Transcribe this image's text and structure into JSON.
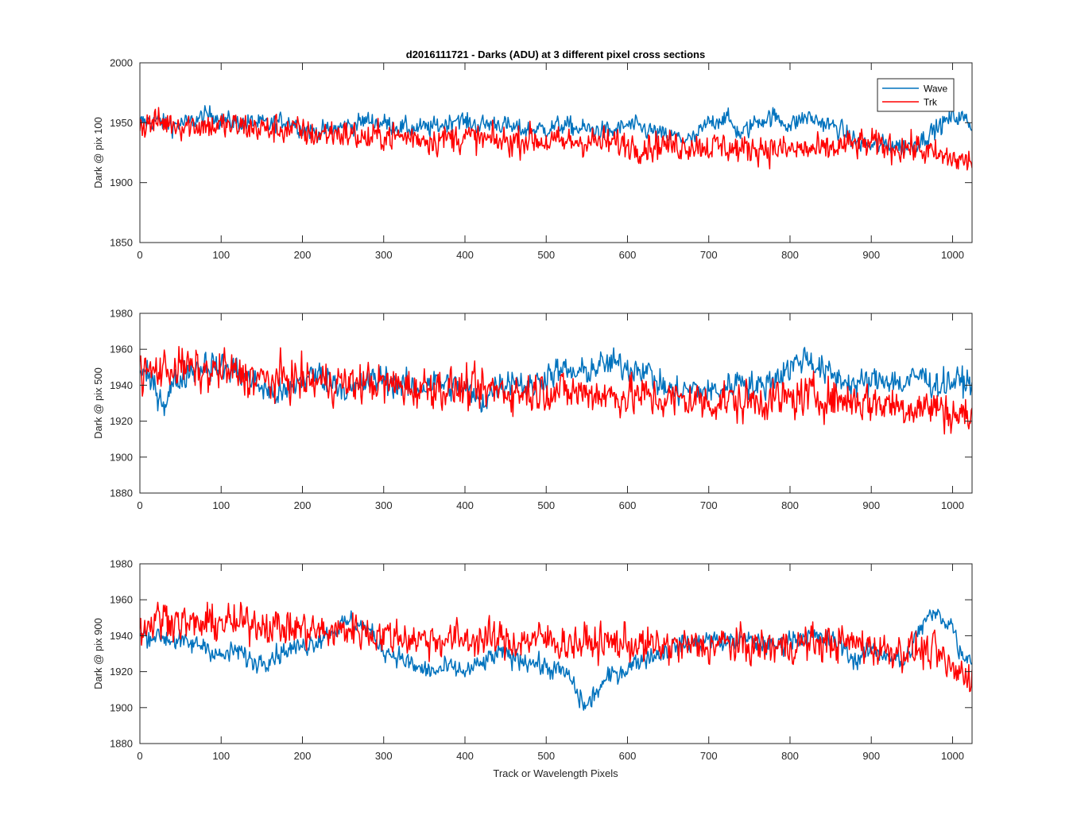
{
  "figure": {
    "title": "d2016111721 - Darks (ADU) at 3 different pixel cross sections",
    "xlabel": "Track or Wavelength Pixels"
  },
  "legend": {
    "entries": [
      {
        "label": "Wave",
        "color": "#0072BD"
      },
      {
        "label": "Trk",
        "color": "#FF0000"
      }
    ],
    "placement": "top-right"
  },
  "colors": {
    "wave": "#0072BD",
    "trk": "#FF0000",
    "axis": "#262626"
  },
  "chart_data": [
    {
      "type": "line",
      "ylabel": "Dark @ pix 100",
      "xlim": [
        0,
        1024
      ],
      "ylim": [
        1850,
        2000
      ],
      "xticks": [
        0,
        100,
        200,
        300,
        400,
        500,
        600,
        700,
        800,
        900,
        1000
      ],
      "yticks": [
        1850,
        1900,
        1950,
        2000
      ],
      "legend": true,
      "series": [
        {
          "name": "Wave",
          "color": "#0072BD",
          "x": [
            0,
            20,
            40,
            60,
            80,
            90,
            100,
            120,
            140,
            160,
            180,
            190,
            200,
            220,
            240,
            260,
            280,
            300,
            320,
            340,
            360,
            380,
            390,
            400,
            420,
            440,
            460,
            480,
            500,
            520,
            540,
            560,
            580,
            600,
            620,
            640,
            660,
            680,
            700,
            720,
            740,
            760,
            780,
            800,
            820,
            840,
            860,
            880,
            900,
            920,
            940,
            960,
            980,
            1000,
            1010,
            1024
          ],
          "y": [
            1950,
            1952,
            1948,
            1950,
            1955,
            1958,
            1952,
            1950,
            1950,
            1948,
            1952,
            1950,
            1945,
            1942,
            1945,
            1948,
            1952,
            1950,
            1946,
            1945,
            1946,
            1950,
            1955,
            1950,
            1948,
            1950,
            1945,
            1944,
            1945,
            1948,
            1945,
            1944,
            1942,
            1948,
            1945,
            1940,
            1938,
            1935,
            1950,
            1955,
            1940,
            1952,
            1955,
            1948,
            1955,
            1950,
            1945,
            1935,
            1930,
            1932,
            1930,
            1935,
            1945,
            1955,
            1955,
            1948
          ]
        },
        {
          "name": "Trk",
          "color": "#FF0000",
          "x": [
            0,
            20,
            40,
            60,
            80,
            100,
            120,
            140,
            160,
            180,
            200,
            220,
            240,
            260,
            280,
            300,
            320,
            340,
            360,
            380,
            400,
            420,
            440,
            460,
            480,
            500,
            520,
            540,
            560,
            580,
            600,
            620,
            640,
            660,
            680,
            700,
            720,
            740,
            760,
            780,
            800,
            820,
            840,
            860,
            880,
            900,
            920,
            940,
            960,
            980,
            1000,
            1010,
            1024
          ],
          "y": [
            1948,
            1950,
            1950,
            1948,
            1948,
            1947,
            1947,
            1946,
            1944,
            1945,
            1942,
            1940,
            1942,
            1940,
            1936,
            1940,
            1938,
            1938,
            1936,
            1937,
            1938,
            1936,
            1934,
            1935,
            1937,
            1934,
            1933,
            1935,
            1934,
            1933,
            1932,
            1930,
            1932,
            1931,
            1932,
            1930,
            1930,
            1927,
            1930,
            1928,
            1927,
            1928,
            1926,
            1930,
            1932,
            1932,
            1930,
            1930,
            1928,
            1922,
            1920,
            1918,
            1918
          ]
        }
      ]
    },
    {
      "type": "line",
      "ylabel": "Dark @ pix 500",
      "xlim": [
        0,
        1024
      ],
      "ylim": [
        1880,
        1980
      ],
      "xticks": [
        0,
        100,
        200,
        300,
        400,
        500,
        600,
        700,
        800,
        900,
        1000
      ],
      "yticks": [
        1880,
        1900,
        1920,
        1940,
        1960,
        1980
      ],
      "legend": false,
      "series": [
        {
          "name": "Wave",
          "color": "#0072BD",
          "x": [
            0,
            20,
            30,
            40,
            60,
            80,
            100,
            120,
            140,
            160,
            180,
            200,
            220,
            240,
            260,
            280,
            300,
            320,
            340,
            360,
            380,
            400,
            420,
            440,
            460,
            480,
            500,
            520,
            540,
            560,
            580,
            600,
            620,
            640,
            660,
            680,
            700,
            720,
            740,
            760,
            780,
            800,
            820,
            840,
            860,
            880,
            900,
            920,
            940,
            960,
            980,
            1000,
            1024
          ],
          "y": [
            1948,
            1938,
            1930,
            1940,
            1948,
            1952,
            1950,
            1948,
            1942,
            1936,
            1935,
            1944,
            1946,
            1942,
            1936,
            1942,
            1944,
            1940,
            1938,
            1942,
            1940,
            1938,
            1930,
            1940,
            1944,
            1938,
            1946,
            1948,
            1946,
            1950,
            1952,
            1950,
            1950,
            1940,
            1936,
            1938,
            1936,
            1938,
            1944,
            1938,
            1944,
            1950,
            1956,
            1948,
            1944,
            1940,
            1942,
            1944,
            1940,
            1946,
            1940,
            1942,
            1942
          ]
        },
        {
          "name": "Trk",
          "color": "#FF0000",
          "x": [
            0,
            20,
            40,
            60,
            80,
            100,
            120,
            140,
            160,
            180,
            200,
            220,
            240,
            260,
            280,
            300,
            320,
            340,
            360,
            380,
            400,
            420,
            440,
            460,
            480,
            500,
            520,
            540,
            560,
            580,
            600,
            620,
            640,
            660,
            680,
            700,
            720,
            740,
            760,
            780,
            800,
            820,
            840,
            860,
            880,
            900,
            920,
            940,
            960,
            980,
            1000,
            1024
          ],
          "y": [
            1946,
            1948,
            1950,
            1950,
            1946,
            1948,
            1946,
            1944,
            1942,
            1944,
            1942,
            1942,
            1942,
            1940,
            1942,
            1940,
            1940,
            1938,
            1940,
            1938,
            1938,
            1936,
            1938,
            1936,
            1936,
            1938,
            1936,
            1936,
            1936,
            1934,
            1934,
            1934,
            1932,
            1932,
            1932,
            1930,
            1932,
            1930,
            1932,
            1932,
            1932,
            1934,
            1934,
            1932,
            1932,
            1930,
            1930,
            1928,
            1928,
            1928,
            1924,
            1922
          ]
        }
      ]
    },
    {
      "type": "line",
      "ylabel": "Dark @ pix 900",
      "xlim": [
        0,
        1024
      ],
      "ylim": [
        1880,
        1980
      ],
      "xticks": [
        0,
        100,
        200,
        300,
        400,
        500,
        600,
        700,
        800,
        900,
        1000
      ],
      "yticks": [
        1880,
        1900,
        1920,
        1940,
        1960,
        1980
      ],
      "legend": false,
      "series": [
        {
          "name": "Wave",
          "color": "#0072BD",
          "x": [
            0,
            20,
            40,
            60,
            80,
            100,
            120,
            140,
            160,
            180,
            200,
            220,
            240,
            260,
            280,
            300,
            320,
            340,
            360,
            380,
            400,
            420,
            440,
            460,
            480,
            500,
            520,
            530,
            540,
            550,
            560,
            580,
            600,
            620,
            640,
            660,
            680,
            700,
            720,
            740,
            760,
            780,
            800,
            820,
            840,
            860,
            880,
            900,
            920,
            940,
            960,
            970,
            980,
            1000,
            1010,
            1024
          ],
          "y": [
            1940,
            1940,
            1938,
            1935,
            1935,
            1928,
            1932,
            1925,
            1928,
            1932,
            1934,
            1938,
            1944,
            1948,
            1944,
            1932,
            1928,
            1922,
            1920,
            1922,
            1920,
            1924,
            1930,
            1928,
            1926,
            1922,
            1920,
            1916,
            1906,
            1900,
            1908,
            1918,
            1922,
            1928,
            1930,
            1934,
            1936,
            1938,
            1936,
            1938,
            1936,
            1934,
            1938,
            1940,
            1938,
            1936,
            1926,
            1932,
            1930,
            1924,
            1944,
            1950,
            1952,
            1946,
            1930,
            1928
          ]
        },
        {
          "name": "Trk",
          "color": "#FF0000",
          "x": [
            0,
            20,
            40,
            60,
            80,
            100,
            120,
            140,
            160,
            180,
            200,
            220,
            240,
            260,
            280,
            300,
            320,
            340,
            360,
            380,
            400,
            420,
            440,
            460,
            480,
            500,
            520,
            540,
            560,
            580,
            600,
            620,
            640,
            660,
            680,
            700,
            720,
            740,
            760,
            780,
            800,
            820,
            840,
            860,
            880,
            900,
            920,
            940,
            960,
            980,
            1000,
            1024
          ],
          "y": [
            1942,
            1950,
            1950,
            1946,
            1946,
            1948,
            1946,
            1948,
            1946,
            1944,
            1944,
            1942,
            1942,
            1944,
            1942,
            1940,
            1940,
            1938,
            1938,
            1938,
            1938,
            1938,
            1938,
            1936,
            1938,
            1938,
            1936,
            1936,
            1936,
            1936,
            1936,
            1934,
            1934,
            1934,
            1934,
            1934,
            1936,
            1934,
            1934,
            1934,
            1934,
            1936,
            1936,
            1936,
            1936,
            1934,
            1932,
            1932,
            1932,
            1930,
            1920,
            1918
          ]
        }
      ]
    }
  ]
}
